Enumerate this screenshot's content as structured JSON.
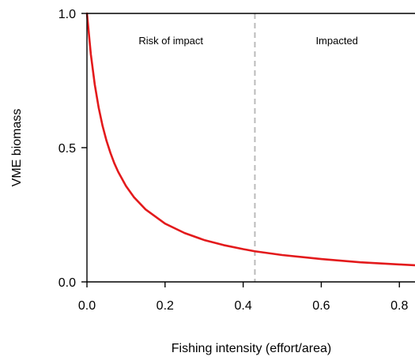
{
  "chart_data": {
    "type": "line",
    "title": "",
    "xlabel": "Fishing intensity (effort/area)",
    "ylabel": "VME biomass",
    "xlim": [
      0,
      0.84
    ],
    "ylim": [
      0,
      1.0
    ],
    "x_ticks": [
      0,
      0.2,
      0.4,
      0.6,
      0.8
    ],
    "x_tick_labels": [
      "0.0",
      "0.2",
      "0.4",
      "0.6",
      "0.8"
    ],
    "y_ticks": [
      0,
      0.5,
      1.0
    ],
    "y_tick_labels": [
      "0.0",
      "0.5",
      "1.0"
    ],
    "grid": false,
    "legend": "none",
    "series": [
      {
        "color": "#e31a1c",
        "x": [
          0.0,
          0.01,
          0.02,
          0.03,
          0.04,
          0.05,
          0.06,
          0.07,
          0.08,
          0.1,
          0.12,
          0.15,
          0.2,
          0.25,
          0.3,
          0.35,
          0.4,
          0.43,
          0.5,
          0.6,
          0.7,
          0.8,
          0.84
        ],
        "y": [
          1.0,
          0.847,
          0.735,
          0.649,
          0.581,
          0.526,
          0.481,
          0.442,
          0.41,
          0.357,
          0.316,
          0.27,
          0.217,
          0.182,
          0.156,
          0.137,
          0.122,
          0.114,
          0.1,
          0.085,
          0.073,
          0.065,
          0.062
        ]
      }
    ],
    "threshold": {
      "x": 0.43,
      "color": "#bbbbbb",
      "style": "dashed"
    },
    "annotations": [
      {
        "text": "Risk of impact",
        "x": 0.215,
        "y": 0.9
      },
      {
        "text": "Impacted",
        "x": 0.64,
        "y": 0.9
      }
    ]
  }
}
